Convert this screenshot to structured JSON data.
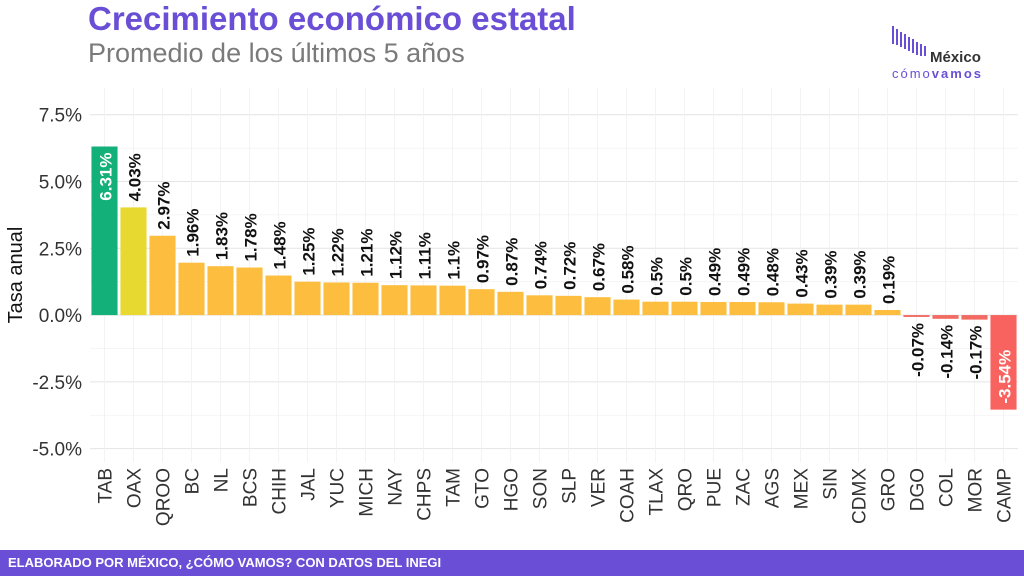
{
  "header": {
    "title": "Crecimiento económico estatal",
    "subtitle": "Promedio de los últimos 5 años"
  },
  "logo": {
    "line1": "México",
    "line2a": "cómo",
    "line2b": "vamos"
  },
  "footer": {
    "text": "ELABORADO POR MÉXICO, ¿CÓMO VAMOS? CON DATOS DEL INEGI"
  },
  "colors": {
    "top": "#13b07a",
    "second": "#e7d92f",
    "positive": "#fdbe3f",
    "negative_small": "#f26b63",
    "bottom": "#f86360",
    "brand": "#6a4fd6"
  },
  "chart_data": {
    "type": "bar",
    "ylabel": "Tasa anual",
    "ylim": [
      -5.5,
      8.5
    ],
    "yticks": [
      7.5,
      5.0,
      2.5,
      0.0,
      -2.5,
      -5.0
    ],
    "ytick_labels": [
      "7.5%",
      "5.0%",
      "2.5%",
      "0.0%",
      "-2.5%",
      "-5.0%"
    ],
    "grid": true,
    "categories": [
      "TAB",
      "OAX",
      "QROO",
      "BC",
      "NL",
      "BCS",
      "CHIH",
      "JAL",
      "YUC",
      "MICH",
      "NAY",
      "CHPS",
      "TAM",
      "GTO",
      "HGO",
      "SON",
      "SLP",
      "VER",
      "COAH",
      "TLAX",
      "QRO",
      "PUE",
      "ZAC",
      "AGS",
      "MEX",
      "SIN",
      "CDMX",
      "GRO",
      "DGO",
      "COL",
      "MOR",
      "CAMP"
    ],
    "values": [
      6.31,
      4.03,
      2.97,
      1.96,
      1.83,
      1.78,
      1.48,
      1.25,
      1.22,
      1.21,
      1.12,
      1.11,
      1.1,
      0.97,
      0.87,
      0.74,
      0.72,
      0.67,
      0.58,
      0.5,
      0.5,
      0.49,
      0.49,
      0.48,
      0.43,
      0.39,
      0.39,
      0.19,
      -0.07,
      -0.14,
      -0.17,
      -3.54
    ],
    "labels": [
      "6.31%",
      "4.03%",
      "2.97%",
      "1.96%",
      "1.83%",
      "1.78%",
      "1.48%",
      "1.25%",
      "1.22%",
      "1.21%",
      "1.12%",
      "1.11%",
      "1.1%",
      "0.97%",
      "0.87%",
      "0.74%",
      "0.72%",
      "0.67%",
      "0.58%",
      "0.5%",
      "0.5%",
      "0.49%",
      "0.49%",
      "0.48%",
      "0.43%",
      "0.39%",
      "0.39%",
      "0.19%",
      "-0.07%",
      "-0.14%",
      "-0.17%",
      "-3.54%"
    ]
  }
}
